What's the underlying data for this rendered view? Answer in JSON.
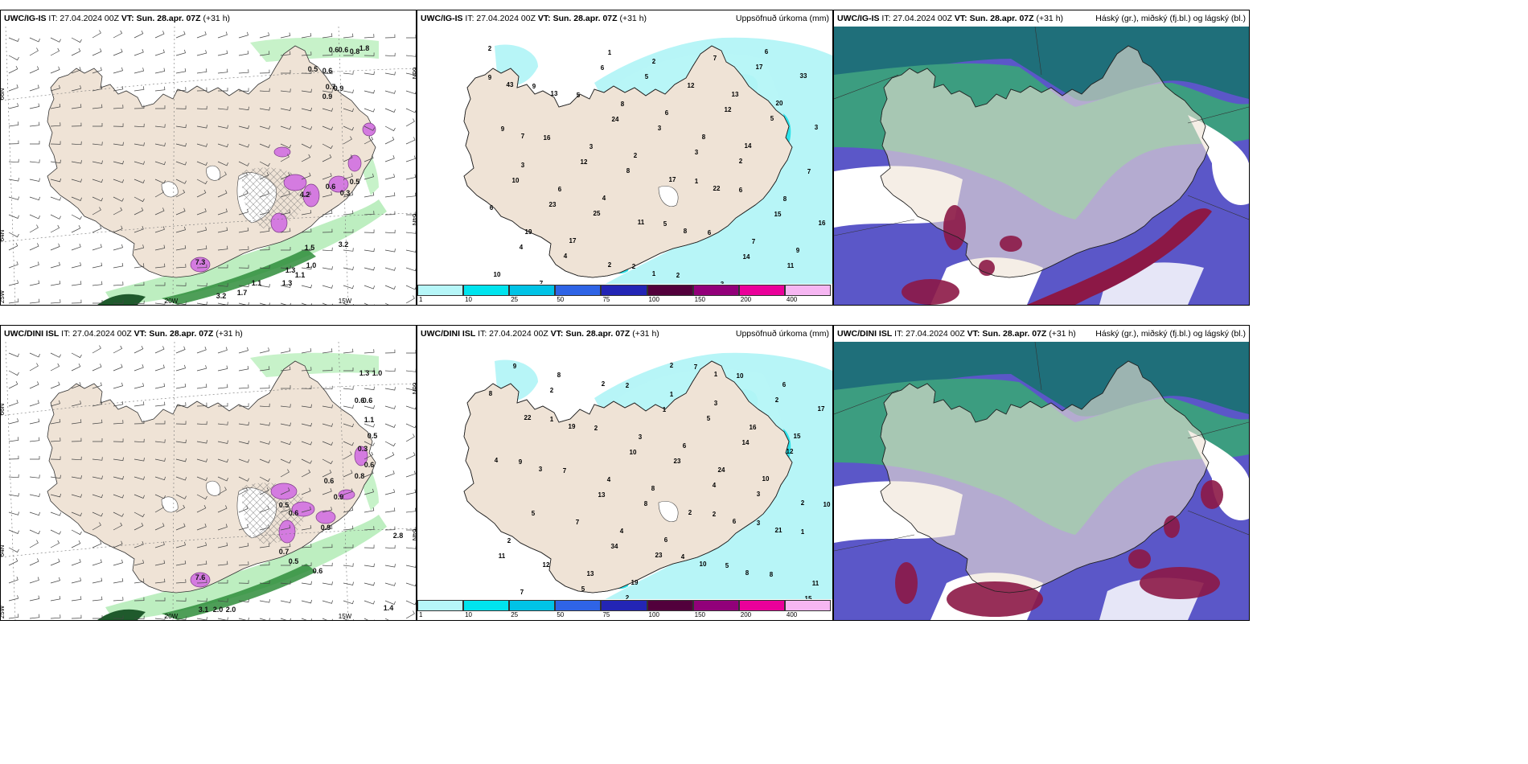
{
  "colors": {
    "land": "#efe3d6",
    "sea_wind": "#ffffff",
    "precip_light": "#b7f5f7",
    "precip_mid": "#2ee3ea",
    "precip_heavy": "#10c7d8",
    "cloud_high": "#1f6f7a",
    "cloud_mid": "#3c9d80",
    "cloud_low": "#5b57c8",
    "cloud_red": "#8c1846",
    "snow_green": "#2f8d3b",
    "snow_pink": "#d47be0"
  },
  "panels": [
    {
      "model": "UWC/IG-IS",
      "it": "IT: 27.04.2024 00Z",
      "vt": "VT: Sun. 28.apr. 07Z",
      "lead": "(+31 h)",
      "right": "",
      "values": [
        "0.6",
        "0.6",
        "1.8",
        "0.8",
        "0.5",
        "0.6",
        "0.7",
        "0.9",
        "0.9",
        "0.5",
        "0.3",
        "3.2",
        "1.7",
        "1.1",
        "1.3",
        "1.1",
        "1.3",
        "1.0",
        "3.2",
        "1.5",
        "0.6",
        "7.3",
        "4.2"
      ],
      "axes": [
        "66N",
        "66N",
        "64N",
        "64N",
        "25W",
        "20W",
        "15W"
      ]
    },
    {
      "model": "UWC/IG-IS",
      "it": "IT: 27.04.2024 00Z",
      "vt": "VT: Sun. 28.apr. 07Z",
      "lead": "(+31 h)",
      "right": "Uppsöfnuð úrkoma (mm)",
      "values": [
        "2",
        "2",
        "1",
        "3",
        "2",
        "7",
        "4",
        "3",
        "4",
        "5",
        "8",
        "12",
        "11",
        "13",
        "25",
        "43",
        "23",
        "33",
        "22",
        "17",
        "17",
        "7",
        "8",
        "7",
        "12",
        "10",
        "14",
        "11",
        "8",
        "14",
        "3",
        "17",
        "24",
        "19",
        "20",
        "16",
        "13",
        "15",
        "12",
        "4",
        "5",
        "6",
        "6",
        "10",
        "6",
        "7",
        "3",
        "2",
        "2",
        "3",
        "2",
        "16",
        "9",
        "9",
        "7",
        "6",
        "6",
        "8",
        "5",
        "5",
        "6",
        "9",
        "8",
        "9",
        "6",
        "2",
        "1",
        "1",
        "3"
      ],
      "colorbar": [
        "1",
        "10",
        "25",
        "50",
        "75",
        "100",
        "150",
        "200",
        "400"
      ]
    },
    {
      "model": "UWC/IG-IS",
      "it": "IT: 27.04.2024 00Z",
      "vt": "VT: Sun. 28.apr. 07Z",
      "lead": "(+31 h)",
      "right": "Háský (gr.), miðský (fj.bl.) og lágský (bl.)"
    },
    {
      "model": "UWC/DINI ISL",
      "it": "IT: 27.04.2024 00Z",
      "vt": "VT: Sun. 28.apr. 07Z",
      "lead": "(+31 h)",
      "right": "",
      "values": [
        "1.3",
        "1.0",
        "0.6",
        "0.6",
        "1.1",
        "0.5",
        "0.3",
        "0.6",
        "0.8",
        "0.6",
        "0.9",
        "0.5",
        "0.6",
        "0.9",
        "0.7",
        "0.5",
        "0.6",
        "2.8",
        "3.1",
        "2.0",
        "2.0",
        "1.4",
        "7.6"
      ],
      "axes": [
        "66N",
        "66N",
        "64N",
        "64N",
        "25W",
        "20W",
        "15W"
      ]
    },
    {
      "model": "UWC/DINI ISL",
      "it": "IT: 27.04.2024 00Z",
      "vt": "VT: Sun. 28.apr. 07Z",
      "lead": "(+31 h)",
      "right": "Uppsöfnuð úrkoma (mm)",
      "values": [
        "2",
        "2",
        "1",
        "3",
        "2",
        "4",
        "2",
        "3",
        "5",
        "4",
        "8",
        "12",
        "10",
        "14",
        "23",
        "19",
        "34",
        "22",
        "21",
        "17",
        "6",
        "2",
        "2",
        "2",
        "8",
        "8",
        "13",
        "9",
        "10",
        "15",
        "24",
        "19",
        "23",
        "13",
        "10",
        "12",
        "15",
        "11",
        "16",
        "6",
        "5",
        "4",
        "1",
        "7",
        "8",
        "5",
        "6",
        "10",
        "10",
        "8",
        "7",
        "4",
        "7",
        "7",
        "11",
        "9",
        "8",
        "6",
        "5",
        "3",
        "4",
        "2",
        "2",
        "1",
        "1",
        "3",
        "3",
        "1",
        "2",
        "2"
      ],
      "colorbar": [
        "1",
        "10",
        "25",
        "50",
        "75",
        "100",
        "150",
        "200",
        "400"
      ]
    },
    {
      "model": "UWC/DINI ISL",
      "it": "IT: 27.04.2024 00Z",
      "vt": "VT: Sun. 28.apr. 07Z",
      "lead": "(+31 h)",
      "right": "Háský (gr.), miðský (fj.bl.) og lágský (bl.)"
    }
  ],
  "colorbar_colors": [
    "#b6f6f8",
    "#00e4ee",
    "#00c3e6",
    "#2f64e6",
    "#2325b5",
    "#52003c",
    "#92007a",
    "#ea009a",
    "#f6b6f2"
  ]
}
